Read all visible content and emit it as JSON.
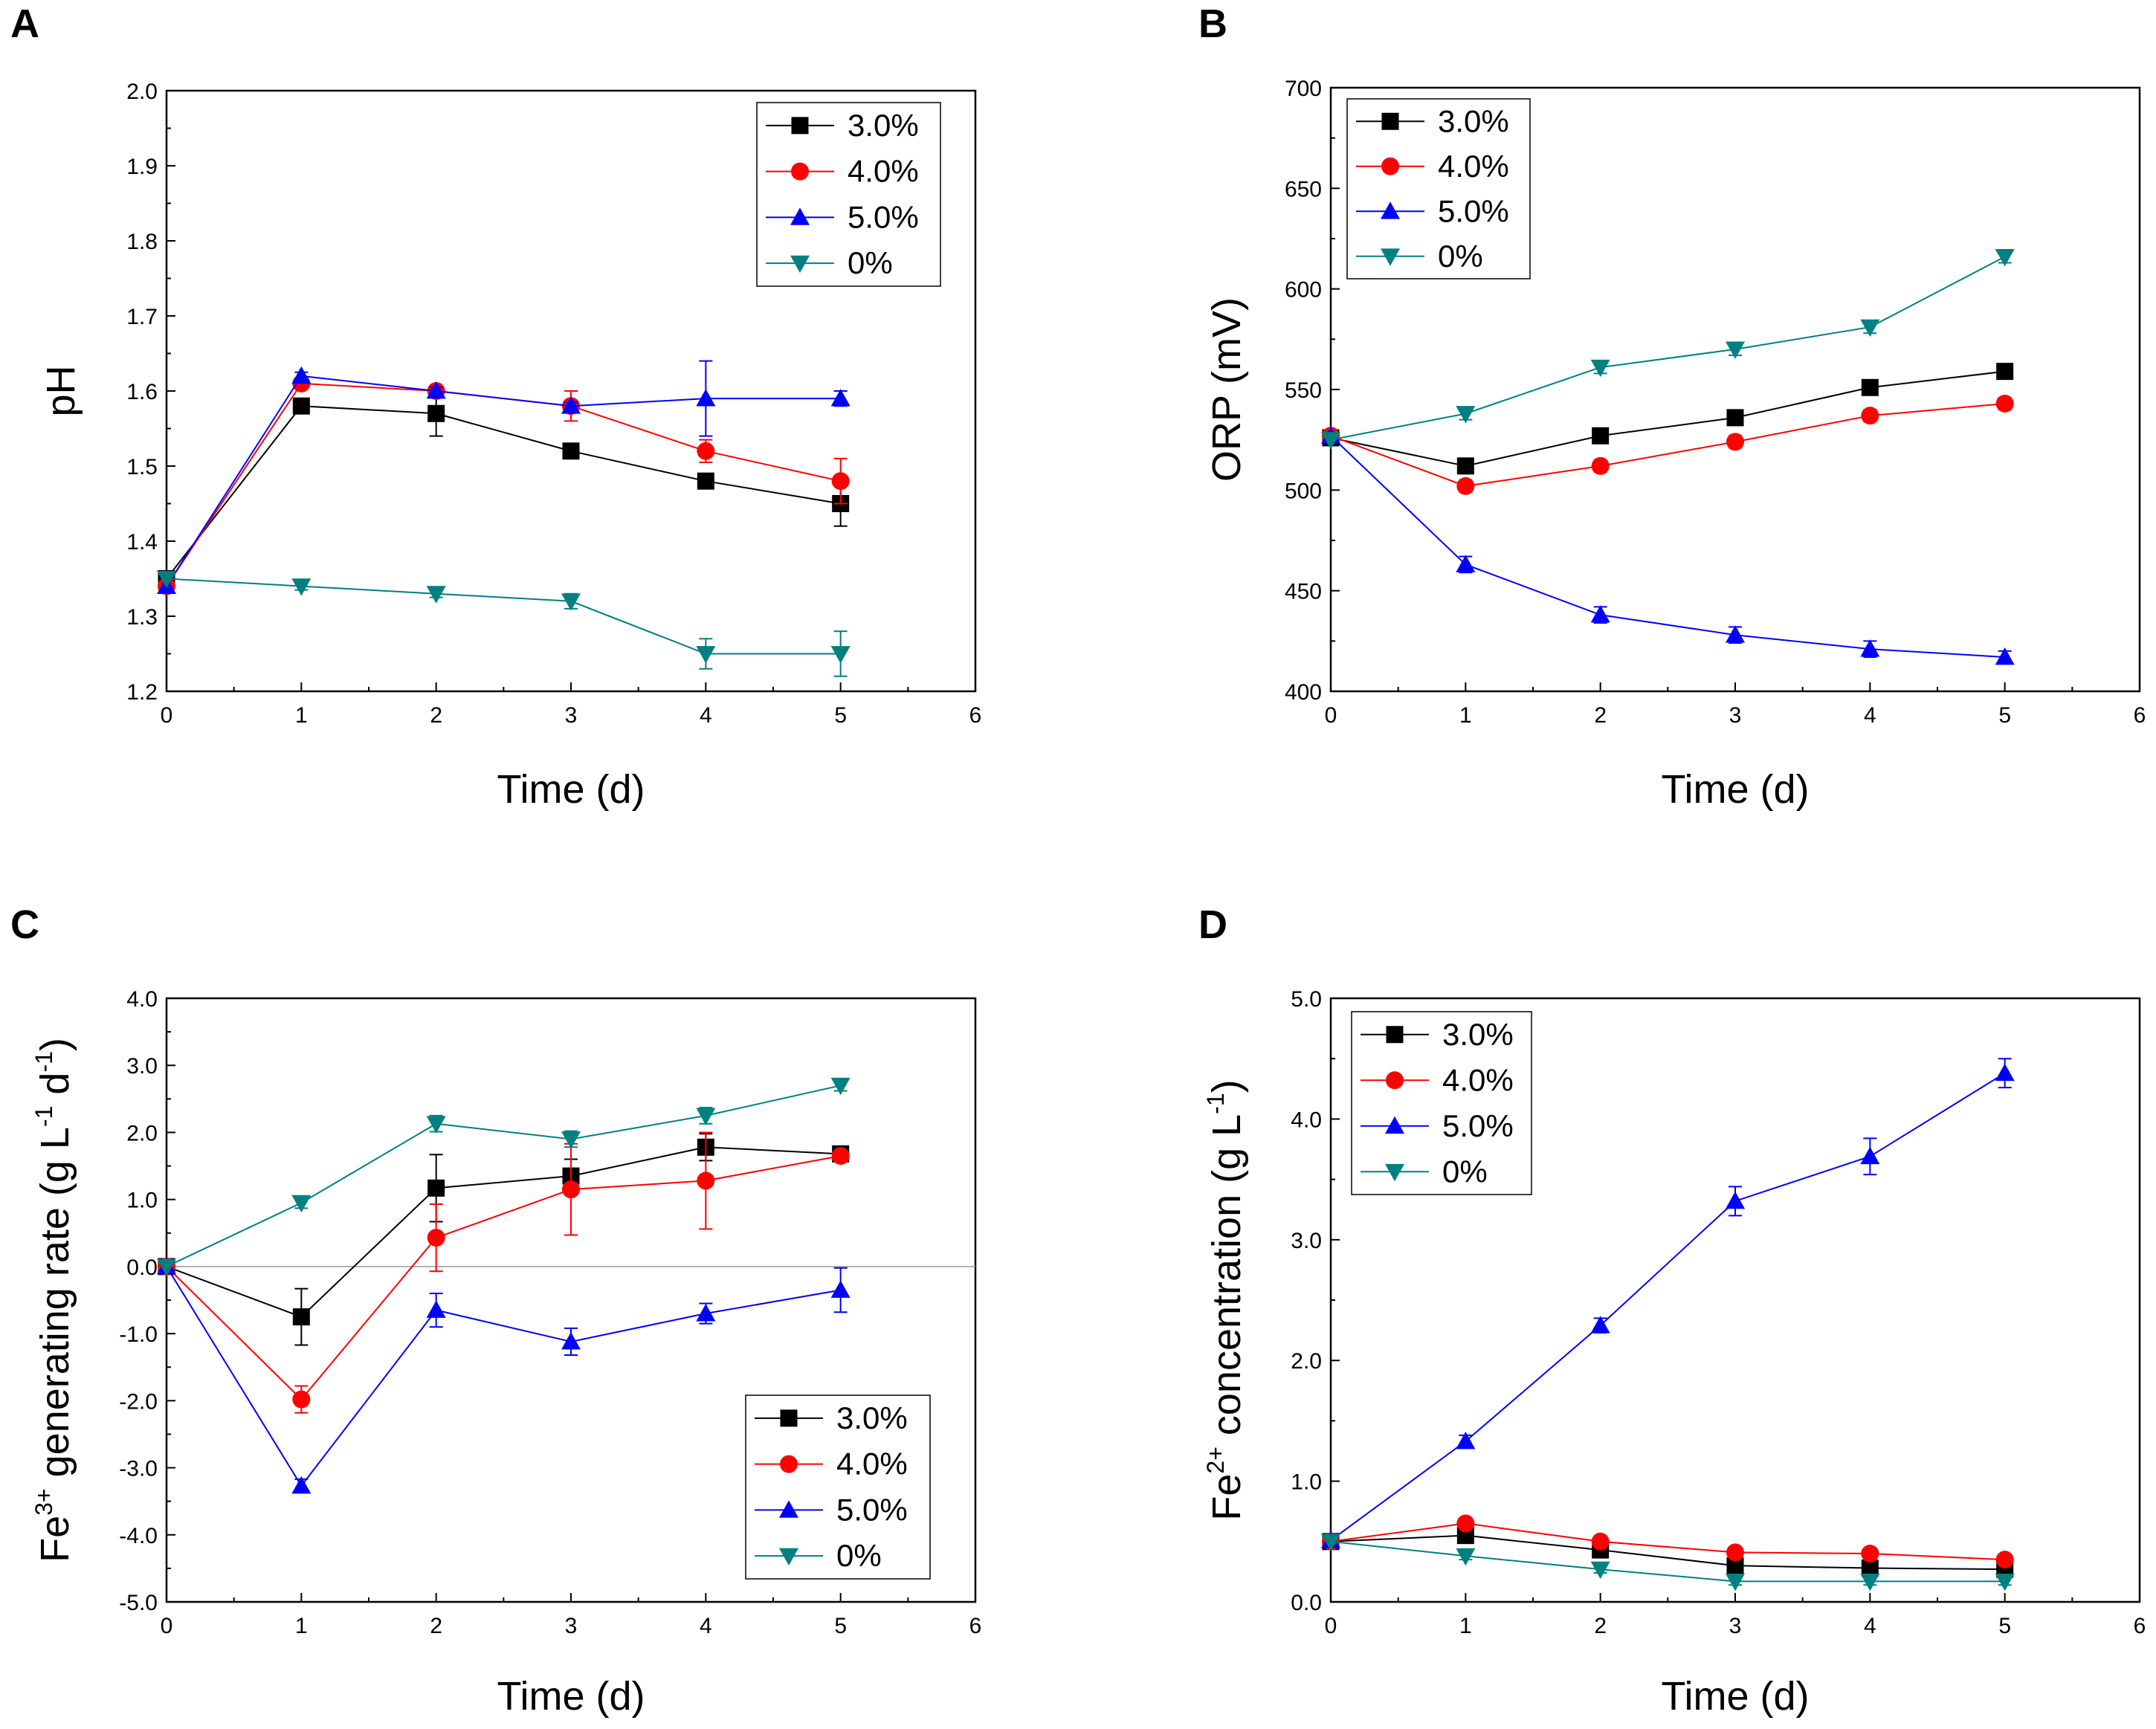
{
  "chart_data": [
    {
      "panel": "A",
      "type": "line",
      "xlabel": "Time (d)",
      "ylabel": "pH",
      "xlim": [
        0,
        6
      ],
      "ylim": [
        1.2,
        2.0
      ],
      "xticks": [
        0,
        1,
        2,
        3,
        4,
        5,
        6
      ],
      "xtick_labels": [
        "0",
        "1",
        "2",
        "3",
        "4",
        "5",
        "6"
      ],
      "yticks": [
        1.2,
        1.3,
        1.4,
        1.5,
        1.6,
        1.7,
        1.8,
        1.9,
        2.0
      ],
      "ytick_labels": [
        "1.2",
        "1.3",
        "1.4",
        "1.5",
        "1.6",
        "1.7",
        "1.8",
        "1.9",
        "2.0"
      ],
      "legend_position": "top-right",
      "zero_line": false,
      "x": [
        0,
        1,
        2,
        3,
        4,
        5
      ],
      "series": [
        {
          "name": "3.0%",
          "color": "#000000",
          "marker": "square",
          "values": [
            1.35,
            1.58,
            1.57,
            1.52,
            1.48,
            1.45
          ],
          "errors": [
            0,
            0.005,
            0.03,
            0.005,
            0.005,
            0.03
          ]
        },
        {
          "name": "4.0%",
          "color": "#ff0000",
          "marker": "circle",
          "values": [
            1.34,
            1.61,
            1.6,
            1.58,
            1.52,
            1.48
          ],
          "errors": [
            0,
            0.005,
            0.005,
            0.02,
            0.015,
            0.03
          ]
        },
        {
          "name": "5.0%",
          "color": "#0000ff",
          "marker": "triangle-up",
          "values": [
            1.34,
            1.62,
            1.6,
            1.58,
            1.59,
            1.59
          ],
          "errors": [
            0,
            0.005,
            0.005,
            0.005,
            0.05,
            0.01
          ]
        },
        {
          "name": "0%",
          "color": "#008080",
          "marker": "triangle-down",
          "values": [
            1.35,
            1.34,
            1.33,
            1.32,
            1.25,
            1.25
          ],
          "errors": [
            0,
            0.005,
            0.005,
            0.01,
            0.02,
            0.03
          ]
        }
      ]
    },
    {
      "panel": "B",
      "type": "line",
      "xlabel": "Time (d)",
      "ylabel": "ORP (mV)",
      "xlim": [
        0,
        6
      ],
      "ylim": [
        400,
        700
      ],
      "xticks": [
        0,
        1,
        2,
        3,
        4,
        5,
        6
      ],
      "xtick_labels": [
        "0",
        "1",
        "2",
        "3",
        "4",
        "5",
        "6"
      ],
      "yticks": [
        400,
        450,
        500,
        550,
        600,
        650,
        700
      ],
      "ytick_labels": [
        "400",
        "450",
        "500",
        "550",
        "600",
        "650",
        "700"
      ],
      "legend_position": "top-left",
      "zero_line": false,
      "x": [
        0,
        1,
        2,
        3,
        4,
        5
      ],
      "series": [
        {
          "name": "3.0%",
          "color": "#000000",
          "marker": "square",
          "values": [
            526,
            512,
            527,
            536,
            551,
            559
          ],
          "errors": [
            0,
            3,
            3,
            3,
            3,
            3
          ]
        },
        {
          "name": "4.0%",
          "color": "#ff0000",
          "marker": "circle",
          "values": [
            527,
            502,
            512,
            524,
            537,
            543
          ],
          "errors": [
            0,
            3,
            3,
            3,
            3,
            3
          ]
        },
        {
          "name": "5.0%",
          "color": "#0000ff",
          "marker": "triangle-up",
          "values": [
            527,
            463,
            438,
            428,
            421,
            417
          ],
          "errors": [
            0,
            4,
            4,
            4,
            4,
            3
          ]
        },
        {
          "name": "0%",
          "color": "#008080",
          "marker": "triangle-down",
          "values": [
            525,
            538,
            561,
            570,
            581,
            616
          ],
          "errors": [
            0,
            3,
            3,
            3,
            3,
            3
          ]
        }
      ]
    },
    {
      "panel": "C",
      "type": "line",
      "xlabel": "Time (d)",
      "ylabel_main": "Fe",
      "ylabel_sup": "3+",
      "ylabel_rest": " generating rate (g L",
      "ylabel_sup2": "-1",
      "ylabel_mid": " d",
      "ylabel_sup3": "-1",
      "ylabel_end": ")",
      "xlim": [
        0,
        6
      ],
      "ylim": [
        -5.0,
        4.0
      ],
      "xticks": [
        0,
        1,
        2,
        3,
        4,
        5,
        6
      ],
      "xtick_labels": [
        "0",
        "1",
        "2",
        "3",
        "4",
        "5",
        "6"
      ],
      "yticks": [
        -5.0,
        -4.0,
        -3.0,
        -2.0,
        -1.0,
        0.0,
        1.0,
        2.0,
        3.0,
        4.0
      ],
      "ytick_labels": [
        "-5.0",
        "-4.0",
        "-3.0",
        "-2.0",
        "-1.0",
        "0.0",
        "1.0",
        "2.0",
        "3.0",
        "4.0"
      ],
      "legend_position": "bottom-right",
      "zero_line": true,
      "x": [
        0,
        1,
        2,
        3,
        4,
        5
      ],
      "series": [
        {
          "name": "3.0%",
          "color": "#000000",
          "marker": "square",
          "values": [
            0,
            -0.75,
            1.17,
            1.35,
            1.78,
            1.68
          ],
          "errors": [
            0,
            0.42,
            0.5,
            0.25,
            0.2,
            0.05
          ]
        },
        {
          "name": "4.0%",
          "color": "#ff0000",
          "marker": "circle",
          "values": [
            0,
            -1.98,
            0.43,
            1.15,
            1.28,
            1.65
          ],
          "errors": [
            0,
            0.2,
            0.5,
            0.68,
            0.72,
            0.05
          ]
        },
        {
          "name": "5.0%",
          "color": "#0000ff",
          "marker": "triangle-up",
          "values": [
            0,
            -3.27,
            -0.65,
            -1.12,
            -0.7,
            -0.35
          ],
          "errors": [
            0,
            0.1,
            0.25,
            0.2,
            0.15,
            0.33
          ]
        },
        {
          "name": "0%",
          "color": "#008080",
          "marker": "triangle-down",
          "values": [
            0,
            0.95,
            2.13,
            1.9,
            2.25,
            2.7
          ],
          "errors": [
            0,
            0.08,
            0.12,
            0.12,
            0.12,
            0.08
          ]
        }
      ]
    },
    {
      "panel": "D",
      "type": "line",
      "xlabel": "Time (d)",
      "ylabel_main": "Fe",
      "ylabel_sup": "2+",
      "ylabel_rest": " concentration (g L",
      "ylabel_sup2": "-1",
      "ylabel_end": ")",
      "xlim": [
        0,
        6
      ],
      "ylim": [
        0.0,
        5.0
      ],
      "xticks": [
        0,
        1,
        2,
        3,
        4,
        5,
        6
      ],
      "xtick_labels": [
        "0",
        "1",
        "2",
        "3",
        "4",
        "5",
        "6"
      ],
      "yticks": [
        0.0,
        1.0,
        2.0,
        3.0,
        4.0,
        5.0
      ],
      "ytick_labels": [
        "0.0",
        "1.0",
        "2.0",
        "3.0",
        "4.0",
        "5.0"
      ],
      "legend_position": "top-left",
      "zero_line": false,
      "x": [
        0,
        1,
        2,
        3,
        4,
        5
      ],
      "series": [
        {
          "name": "3.0%",
          "color": "#000000",
          "marker": "square",
          "values": [
            0.5,
            0.55,
            0.43,
            0.3,
            0.28,
            0.27
          ],
          "errors": [
            0,
            0.03,
            0.03,
            0.03,
            0.03,
            0.03
          ]
        },
        {
          "name": "4.0%",
          "color": "#ff0000",
          "marker": "circle",
          "values": [
            0.5,
            0.65,
            0.5,
            0.41,
            0.4,
            0.35
          ],
          "errors": [
            0,
            0.03,
            0.03,
            0.03,
            0.03,
            0.03
          ]
        },
        {
          "name": "5.0%",
          "color": "#0000ff",
          "marker": "triangle-up",
          "values": [
            0.51,
            1.33,
            2.29,
            3.32,
            3.69,
            4.38
          ],
          "errors": [
            0,
            0.05,
            0.06,
            0.12,
            0.15,
            0.12
          ]
        },
        {
          "name": "0%",
          "color": "#008080",
          "marker": "triangle-down",
          "values": [
            0.5,
            0.38,
            0.27,
            0.17,
            0.17,
            0.17
          ],
          "errors": [
            0,
            0.03,
            0.03,
            0.03,
            0.03,
            0.03
          ]
        }
      ]
    }
  ]
}
